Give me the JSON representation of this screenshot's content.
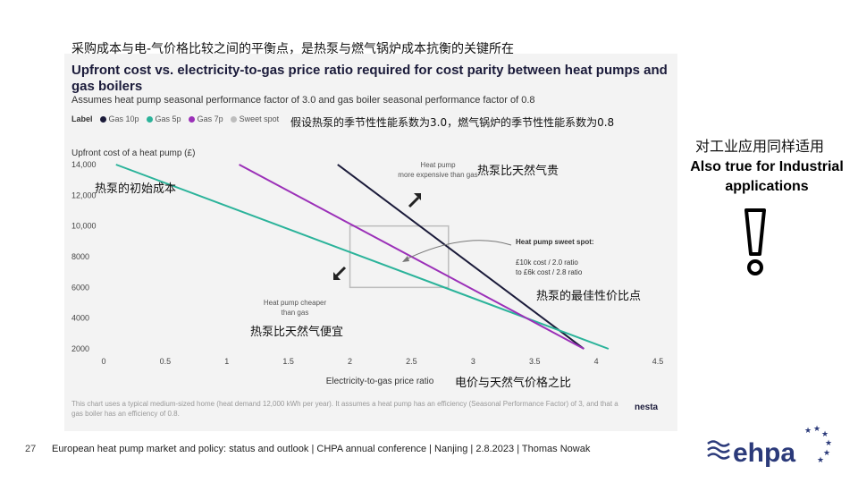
{
  "slide": {
    "top_note_cn": "采购成本与电-气价格比较之间的平衡点，是热泵与燃气锅炉成本抗衡的关键所在",
    "side_note_cn": "对工业应用同样适用",
    "side_note_en": "Also true for Industrial applications",
    "page_number": "27",
    "footer_text": "European heat pump market and policy: status and outlook  | CHPA annual conference | Nanjing | 2.8.2023 | Thomas Nowak",
    "logo_text": "ehpa",
    "nesta_text": "nesta",
    "annotations_cn": {
      "cop_note": "假设热泵的季节性性能系数为3.0，燃气锅炉的季节性性能系数为0.8",
      "initial_cost": "热泵的初始成本",
      "more_expensive": "热泵比天然气贵",
      "cheaper": "热泵比天然气便宜",
      "best_value": "热泵的最佳性价比点",
      "price_ratio": "电价与天然气价格之比"
    },
    "colors": {
      "gas_10p": "#1b1b3a",
      "gas_5p": "#2bb39a",
      "gas_7p": "#9b30b8",
      "sweet_spot": "#bdbdbd",
      "panel": "#f3f3f3",
      "logo": "#2b3a7a"
    }
  },
  "chart_data": {
    "type": "line",
    "title": "Upfront cost vs. electricity-to-gas price ratio required for cost parity between heat pumps and gas boilers",
    "subtitle": "Assumes heat pump seasonal performance factor of 3.0 and gas boiler seasonal performance factor of 0.8",
    "legend_label": "Label",
    "xlabel": "Electricity-to-gas price ratio",
    "ylabel": "Upfront cost of a heat pump (£)",
    "xlim": [
      0,
      4.5
    ],
    "ylim": [
      2000,
      14000
    ],
    "x_ticks": [
      "0",
      "0.5",
      "1",
      "1.5",
      "2",
      "2.5",
      "3",
      "3.5",
      "4",
      "4.5"
    ],
    "y_ticks": [
      "14,000",
      "12,000",
      "10,000",
      "8000",
      "6000",
      "4000",
      "2000"
    ],
    "series": [
      {
        "name": "Gas 10p",
        "color": "#1b1b3a",
        "points": [
          [
            1.9,
            14000
          ],
          [
            3.9,
            2000
          ]
        ]
      },
      {
        "name": "Gas 5p",
        "color": "#2bb39a",
        "points": [
          [
            0.1,
            14000
          ],
          [
            4.1,
            2000
          ]
        ]
      },
      {
        "name": "Gas 7p",
        "color": "#9b30b8",
        "points": [
          [
            1.1,
            14000
          ],
          [
            3.9,
            2000
          ]
        ]
      }
    ],
    "sweet_spot": {
      "name": "Sweet spot",
      "x": [
        2.0,
        2.8
      ],
      "y": [
        6000,
        10000
      ]
    },
    "annotations": {
      "more_expensive": "Heat pump more expensive than gas",
      "cheaper": "Heat pump cheaper than gas",
      "sweet_title": "Heat pump sweet spot:",
      "sweet_line1": "£10k cost / 2.0 ratio",
      "sweet_line2": "to £6k cost / 2.8 ratio"
    },
    "footnote": "This chart uses a typical medium-sized home (heat demand 12,000 kWh per year). It assumes a heat pump has an efficiency (Seasonal Performance Factor) of 3, and that a gas boiler has an efficiency of 0.8."
  }
}
